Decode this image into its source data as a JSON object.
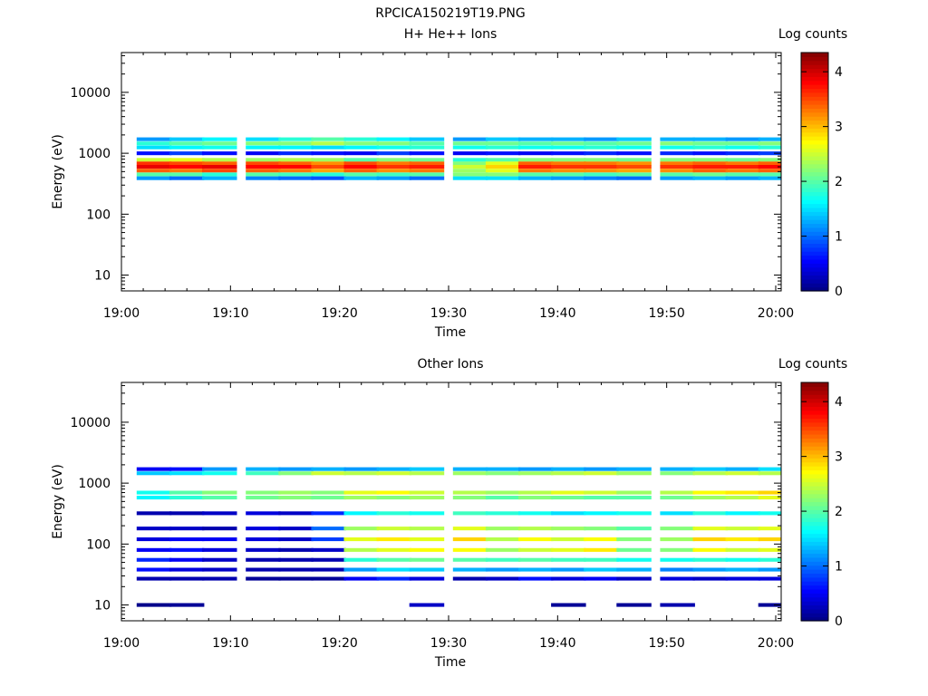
{
  "figure_title": "RPCICA150219T19.PNG",
  "colorbar": {
    "label": "Log counts",
    "ticks": [
      "0",
      "1",
      "2",
      "3",
      "4"
    ],
    "range": [
      0,
      4.35
    ],
    "colormap": "jet"
  },
  "chart_data": [
    {
      "type": "heatmap",
      "title": "H+ He++ Ions",
      "xlabel": "Time",
      "ylabel": "Energy (eV)",
      "x_ticks": [
        "19:00",
        "19:10",
        "19:20",
        "19:30",
        "19:40",
        "19:50",
        "20:00"
      ],
      "y_ticks": [
        "10",
        "100",
        "1000",
        "10000"
      ],
      "y_scale": "log",
      "xlim_minutes": [
        0,
        60.5
      ],
      "ylim_eV": [
        5.5,
        45000
      ],
      "time_bins": [
        "19:03",
        "19:06",
        "19:09",
        "19:13",
        "19:16",
        "19:19",
        "19:22",
        "19:25",
        "19:28",
        "19:32",
        "19:35",
        "19:38",
        "19:41",
        "19:44",
        "19:47",
        "19:51",
        "19:54",
        "19:57",
        "20:00"
      ],
      "colorbar_label": "Log counts",
      "series": [
        {
          "energy_eV": 1700,
          "values": [
            1.2,
            1.4,
            1.6,
            1.5,
            1.8,
            2.0,
            1.8,
            1.6,
            1.4,
            1.2,
            1.4,
            1.3,
            1.3,
            1.2,
            1.4,
            1.3,
            1.3,
            1.2,
            1.3
          ]
        },
        {
          "energy_eV": 1450,
          "values": [
            1.8,
            2.0,
            2.1,
            2.2,
            2.2,
            2.4,
            2.2,
            2.2,
            2.0,
            2.1,
            2.1,
            2.0,
            2.1,
            2.0,
            2.1,
            2.2,
            2.1,
            2.1,
            2.2
          ]
        },
        {
          "energy_eV": 1250,
          "values": [
            1.5,
            1.6,
            1.7,
            1.6,
            1.6,
            1.5,
            1.6,
            1.7,
            1.8,
            1.7,
            1.8,
            1.7,
            1.7,
            1.8,
            1.7,
            1.7,
            1.8,
            1.7,
            1.8
          ]
        },
        {
          "energy_eV": 1000,
          "values": [
            0.6,
            0.8,
            0.6,
            0.5,
            0.7,
            0.6,
            0.5,
            0.8,
            0.6,
            0.5,
            0.6,
            0.5,
            0.6,
            0.7,
            0.6,
            0.7,
            0.6,
            0.7,
            0.8
          ]
        },
        {
          "energy_eV": 780,
          "values": [
            2.5,
            2.6,
            2.4,
            2.3,
            2.4,
            2.3,
            2.0,
            2.2,
            2.1,
            1.8,
            2.0,
            2.2,
            2.2,
            2.2,
            2.1,
            2.2,
            2.2,
            2.1,
            2.2
          ]
        },
        {
          "energy_eV": 680,
          "values": [
            3.6,
            3.5,
            3.4,
            3.5,
            3.4,
            3.2,
            3.5,
            3.3,
            3.4,
            2.2,
            2.6,
            3.4,
            3.3,
            3.3,
            3.2,
            3.3,
            3.4,
            3.3,
            3.4
          ]
        },
        {
          "energy_eV": 600,
          "values": [
            3.9,
            3.8,
            3.9,
            3.8,
            3.8,
            3.5,
            3.8,
            3.6,
            3.7,
            2.5,
            2.9,
            3.7,
            3.6,
            3.6,
            3.5,
            3.6,
            3.7,
            3.7,
            3.8
          ]
        },
        {
          "energy_eV": 520,
          "values": [
            3.4,
            3.3,
            3.5,
            3.4,
            3.3,
            3.1,
            3.4,
            3.2,
            3.3,
            2.3,
            2.6,
            3.3,
            3.2,
            3.2,
            3.1,
            3.2,
            3.4,
            3.3,
            3.4
          ]
        },
        {
          "energy_eV": 450,
          "values": [
            2.0,
            2.0,
            1.8,
            2.0,
            1.9,
            1.8,
            2.0,
            1.9,
            2.0,
            2.2,
            2.2,
            2.0,
            2.0,
            1.9,
            2.0,
            2.0,
            2.1,
            2.0,
            2.0
          ]
        },
        {
          "energy_eV": 390,
          "values": [
            1.2,
            1.0,
            1.3,
            1.1,
            1.0,
            0.9,
            1.3,
            1.2,
            1.0,
            1.5,
            1.5,
            1.3,
            1.2,
            1.1,
            1.0,
            1.2,
            1.3,
            1.2,
            1.3
          ]
        }
      ]
    },
    {
      "type": "heatmap",
      "title": "Other Ions",
      "xlabel": "Time",
      "ylabel": "Energy (eV)",
      "x_ticks": [
        "19:00",
        "19:10",
        "19:20",
        "19:30",
        "19:40",
        "19:50",
        "20:00"
      ],
      "y_ticks": [
        "10",
        "100",
        "1000",
        "10000"
      ],
      "y_scale": "log",
      "xlim_minutes": [
        0,
        60.5
      ],
      "ylim_eV": [
        5.5,
        45000
      ],
      "time_bins": [
        "19:03",
        "19:06",
        "19:09",
        "19:13",
        "19:16",
        "19:19",
        "19:22",
        "19:25",
        "19:28",
        "19:32",
        "19:35",
        "19:38",
        "19:41",
        "19:44",
        "19:47",
        "19:51",
        "19:54",
        "19:57",
        "20:00"
      ],
      "colorbar_label": "Log counts",
      "series": [
        {
          "energy_eV": 1700,
          "values": [
            0.5,
            0.6,
            1.2,
            1.3,
            1.2,
            1.3,
            1.2,
            1.3,
            1.4,
            1.3,
            1.3,
            1.2,
            1.3,
            1.2,
            1.3,
            1.3,
            1.4,
            1.3,
            1.5
          ]
        },
        {
          "energy_eV": 1450,
          "values": [
            1.4,
            1.5,
            1.7,
            1.9,
            2.2,
            2.5,
            2.4,
            2.5,
            2.4,
            2.3,
            2.2,
            2.3,
            2.4,
            2.5,
            2.3,
            2.2,
            2.4,
            2.5,
            2.4
          ]
        },
        {
          "energy_eV": 700,
          "values": [
            1.7,
            2.0,
            2.2,
            2.2,
            2.3,
            2.2,
            2.6,
            2.7,
            2.5,
            2.4,
            2.3,
            2.4,
            2.6,
            2.5,
            2.3,
            2.4,
            2.7,
            2.8,
            2.9
          ]
        },
        {
          "energy_eV": 580,
          "values": [
            1.6,
            1.8,
            2.0,
            2.1,
            2.2,
            2.1,
            2.3,
            2.2,
            2.3,
            2.2,
            2.0,
            2.2,
            2.1,
            2.0,
            2.0,
            2.1,
            2.3,
            2.4,
            2.6
          ]
        },
        {
          "energy_eV": 320,
          "values": [
            0.2,
            0.2,
            0.3,
            0.4,
            0.3,
            0.7,
            1.6,
            1.8,
            1.7,
            1.9,
            1.8,
            1.7,
            1.5,
            1.6,
            1.7,
            1.5,
            1.8,
            1.6,
            1.7
          ]
        },
        {
          "energy_eV": 180,
          "values": [
            0.3,
            0.3,
            0.2,
            0.4,
            0.3,
            1.0,
            2.3,
            2.5,
            2.4,
            2.6,
            2.3,
            2.4,
            2.3,
            2.2,
            2.0,
            2.2,
            2.6,
            2.5,
            2.6
          ]
        },
        {
          "energy_eV": 120,
          "values": [
            0.4,
            0.5,
            0.5,
            0.4,
            0.3,
            0.8,
            2.6,
            2.8,
            2.6,
            2.9,
            2.4,
            2.7,
            2.5,
            2.7,
            2.2,
            2.3,
            2.9,
            2.8,
            2.9
          ]
        },
        {
          "energy_eV": 80,
          "values": [
            0.5,
            0.6,
            0.4,
            0.3,
            0.2,
            0.3,
            2.4,
            2.6,
            2.7,
            2.7,
            2.3,
            2.5,
            2.6,
            2.8,
            2.1,
            2.2,
            2.7,
            2.5,
            2.6
          ]
        },
        {
          "energy_eV": 55,
          "values": [
            0.7,
            0.5,
            0.3,
            0.2,
            0.2,
            0.2,
            1.8,
            2.0,
            2.1,
            2.0,
            1.9,
            2.0,
            1.9,
            1.9,
            1.7,
            1.7,
            1.8,
            1.7,
            1.8
          ]
        },
        {
          "energy_eV": 38,
          "values": [
            0.6,
            0.4,
            0.3,
            0.2,
            0.2,
            0.2,
            1.2,
            1.5,
            1.4,
            1.3,
            1.2,
            1.3,
            1.2,
            1.4,
            1.3,
            1.1,
            1.2,
            1.3,
            1.2
          ]
        },
        {
          "energy_eV": 27,
          "values": [
            0.2,
            0.2,
            0.2,
            0.1,
            0.1,
            0.1,
            0.5,
            0.7,
            0.4,
            0.2,
            0.3,
            0.6,
            0.4,
            0.5,
            0.3,
            0.4,
            0.3,
            0.4,
            0.4
          ]
        },
        {
          "energy_eV": 10,
          "values": [
            0.05,
            0.1,
            0.0,
            0.0,
            0.0,
            0.0,
            0.0,
            0.0,
            0.3,
            0.0,
            0.0,
            0.0,
            0.1,
            0.0,
            0.1,
            0.2,
            0.0,
            0.0,
            0.1
          ]
        }
      ]
    }
  ]
}
